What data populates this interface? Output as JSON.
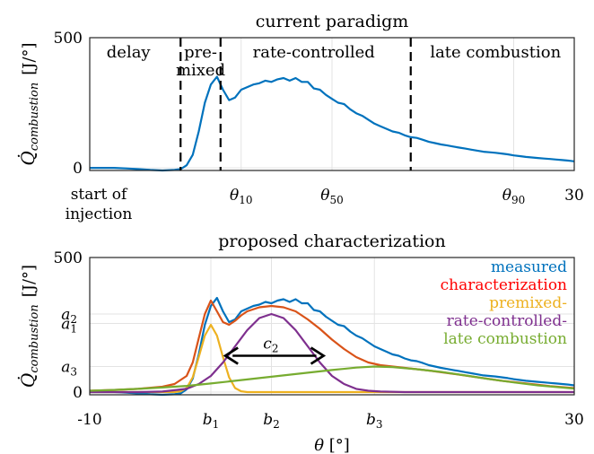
{
  "chart_data": [
    {
      "type": "line",
      "title": "current paradigm",
      "ylabel_symbol": "Q̇",
      "ylabel_subscript": "combustion",
      "ylabel_unit": "[J/°]",
      "ylim": [
        -10,
        500
      ],
      "xlim": [
        -10,
        30
      ],
      "y_tick_labels": [
        "500",
        "0"
      ],
      "y_ticks": [
        500,
        0
      ],
      "x_tick_labels": [
        {
          "x": 2.5,
          "base": "θ",
          "sub": "10"
        },
        {
          "x": 10,
          "base": "θ",
          "sub": "50"
        },
        {
          "x": 25,
          "base": "θ",
          "sub": "90"
        },
        {
          "x": 30,
          "text": "30"
        }
      ],
      "start_label": [
        "start of",
        "injection"
      ],
      "phase_dividers": [
        -2.5,
        0.8,
        16.5
      ],
      "phases": [
        {
          "x": -6.8,
          "lines": [
            "delay"
          ],
          "y": 95
        },
        {
          "x": -0.85,
          "lines": [
            "pre-",
            "mixed"
          ],
          "y": 95
        },
        {
          "x": 8.5,
          "lines": [
            "rate-controlled"
          ],
          "y": 95
        },
        {
          "x": 23.5,
          "lines": [
            "late   combustion"
          ],
          "y": 95
        }
      ],
      "series": [
        {
          "color": "#0072bd",
          "x": [
            -10,
            -9,
            -8,
            -7,
            -6,
            -5,
            -4,
            -3,
            -2.5,
            -2,
            -1.5,
            -1,
            -0.5,
            0,
            0.5,
            1,
            1.5,
            2,
            2.5,
            3,
            3.5,
            4,
            4.5,
            5,
            5.5,
            6,
            6.5,
            7,
            7.5,
            8,
            8.5,
            9,
            9.5,
            10,
            10.5,
            11,
            11.5,
            12,
            12.5,
            13,
            13.5,
            14,
            14.5,
            15,
            15.5,
            16,
            16.5,
            17,
            17.5,
            18,
            18.5,
            19,
            19.5,
            20,
            20.5,
            21,
            21.5,
            22,
            22.5,
            23,
            23.5,
            24,
            24.5,
            25,
            25.5,
            26,
            26.5,
            27,
            27.5,
            28,
            28.5,
            29,
            29.5,
            30
          ],
          "values": [
            0,
            0,
            0,
            -2,
            -5,
            -8,
            -10,
            -8,
            -5,
            10,
            50,
            140,
            250,
            320,
            350,
            300,
            260,
            270,
            300,
            310,
            320,
            325,
            335,
            330,
            340,
            345,
            335,
            345,
            330,
            330,
            305,
            300,
            280,
            265,
            250,
            245,
            225,
            210,
            200,
            185,
            170,
            160,
            150,
            140,
            135,
            125,
            118,
            115,
            108,
            100,
            95,
            90,
            86,
            82,
            78,
            74,
            70,
            66,
            62,
            60,
            58,
            55,
            52,
            48,
            45,
            42,
            40,
            38,
            36,
            34,
            32,
            30,
            28,
            25
          ]
        }
      ]
    },
    {
      "type": "line",
      "title": "proposed characterization",
      "ylabel_symbol": "Q̇",
      "ylabel_subscript": "combustion",
      "ylabel_unit": "[J/°]",
      "ylim": [
        -10,
        500
      ],
      "xlim": [
        -10,
        30
      ],
      "y_tick_labels": [
        {
          "y": 500,
          "text": "500"
        },
        {
          "y": 290,
          "base": "a",
          "sub": "2"
        },
        {
          "y": 255,
          "base": "a",
          "sub": "1"
        },
        {
          "y": 95,
          "base": "a",
          "sub": "3"
        },
        {
          "y": 0,
          "text": "0"
        }
      ],
      "x_tick_labels": [
        {
          "x": -10,
          "text": "-10"
        },
        {
          "x": 0,
          "base": "b",
          "sub": "1"
        },
        {
          "x": 5,
          "base": "b",
          "sub": "2"
        },
        {
          "x": 13.5,
          "base": "b",
          "sub": "3"
        },
        {
          "x": 30,
          "text": "30"
        }
      ],
      "xlabel_symbol": "θ",
      "xlabel_unit": "[°]",
      "annotation": {
        "base": "c",
        "sub": "2",
        "x_from": 1.2,
        "x_to": 9.3,
        "y": 135
      },
      "legend": {
        "placement": "top-right",
        "entries": [
          {
            "label": "measured",
            "color": "#0072bd"
          },
          {
            "label": "characterization",
            "color": "#ff0000"
          },
          {
            "label": "premixed-",
            "color": "#edb120"
          },
          {
            "label": "rate-controlled-",
            "color": "#7e2f8e"
          },
          {
            "label": "late combustion",
            "color": "#77ac30"
          }
        ]
      },
      "series": [
        {
          "color": "#0072bd",
          "x": [
            -10,
            -9,
            -8,
            -7,
            -6,
            -5,
            -4,
            -3,
            -2.5,
            -2,
            -1.5,
            -1,
            -0.5,
            0,
            0.5,
            1,
            1.5,
            2,
            2.5,
            3,
            3.5,
            4,
            4.5,
            5,
            5.5,
            6,
            6.5,
            7,
            7.5,
            8,
            8.5,
            9,
            9.5,
            10,
            10.5,
            11,
            11.5,
            12,
            12.5,
            13,
            13.5,
            14,
            14.5,
            15,
            15.5,
            16,
            16.5,
            17,
            17.5,
            18,
            18.5,
            19,
            19.5,
            20,
            20.5,
            21,
            21.5,
            22,
            22.5,
            23,
            23.5,
            24,
            24.5,
            25,
            25.5,
            26,
            26.5,
            27,
            27.5,
            28,
            28.5,
            29,
            29.5,
            30
          ],
          "values": [
            0,
            0,
            0,
            -2,
            -5,
            -8,
            -10,
            -8,
            -5,
            10,
            50,
            140,
            250,
            320,
            350,
            300,
            260,
            270,
            300,
            310,
            320,
            325,
            335,
            330,
            340,
            345,
            335,
            345,
            330,
            330,
            305,
            300,
            280,
            265,
            250,
            245,
            225,
            210,
            200,
            185,
            170,
            160,
            150,
            140,
            135,
            125,
            118,
            115,
            108,
            100,
            95,
            90,
            86,
            82,
            78,
            74,
            70,
            66,
            62,
            60,
            58,
            55,
            52,
            48,
            45,
            42,
            40,
            38,
            36,
            34,
            32,
            30,
            28,
            25
          ]
        },
        {
          "color": "#d95319",
          "x": [
            -10,
            -8,
            -6,
            -4,
            -3,
            -2,
            -1.5,
            -1,
            -0.5,
            0,
            0.5,
            1,
            1.5,
            2,
            2.5,
            3,
            4,
            5,
            6,
            7,
            8,
            9,
            10,
            11,
            12,
            13,
            14,
            15,
            16,
            18,
            20,
            22,
            24,
            26,
            28,
            30
          ],
          "values": [
            5,
            8,
            12,
            20,
            30,
            60,
            110,
            200,
            290,
            340,
            300,
            260,
            250,
            265,
            285,
            300,
            315,
            320,
            315,
            300,
            270,
            235,
            195,
            160,
            130,
            110,
            100,
            95,
            90,
            80,
            68,
            55,
            42,
            32,
            22,
            15
          ]
        },
        {
          "color": "#edb120",
          "x": [
            -10,
            -3,
            -2.5,
            -2,
            -1.5,
            -1,
            -0.5,
            0,
            0.5,
            1,
            1.5,
            2,
            2.5,
            3,
            30
          ],
          "values": [
            0,
            0,
            3,
            15,
            55,
            130,
            210,
            250,
            210,
            130,
            55,
            15,
            3,
            0,
            0
          ]
        },
        {
          "color": "#7e2f8e",
          "x": [
            -10,
            -6,
            -4,
            -2,
            -1,
            0,
            1,
            2,
            3,
            4,
            5,
            6,
            7,
            8,
            9,
            10,
            11,
            12,
            13,
            14,
            16,
            18,
            20,
            30
          ],
          "values": [
            0,
            0,
            2,
            12,
            30,
            60,
            110,
            170,
            230,
            275,
            290,
            275,
            230,
            170,
            110,
            60,
            30,
            12,
            5,
            2,
            0,
            0,
            0,
            0
          ]
        },
        {
          "color": "#77ac30",
          "x": [
            -10,
            -8,
            -6,
            -4,
            -2,
            0,
            2,
            4,
            6,
            8,
            10,
            12,
            13.5,
            15,
            17,
            19,
            21,
            23,
            25,
            27,
            30
          ],
          "values": [
            5,
            8,
            12,
            17,
            23,
            32,
            42,
            52,
            62,
            72,
            82,
            91,
            95,
            93,
            85,
            75,
            62,
            48,
            36,
            25,
            13
          ]
        }
      ]
    }
  ]
}
